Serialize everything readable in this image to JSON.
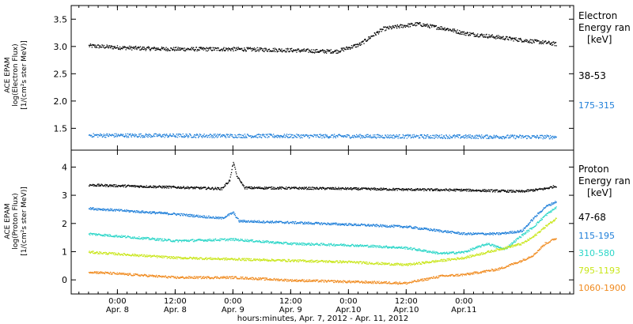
{
  "chart_data": [
    {
      "type": "scatter",
      "panel": "electron",
      "ylabel_lines": [
        "ACE EPAM",
        "log(Electron Flux)",
        "[1/(cm²s ster MeV)]"
      ],
      "ylim": [
        1.1,
        3.75
      ],
      "yticks": [
        "1.5",
        "2.0",
        "2.5",
        "3.0",
        "3.5"
      ],
      "ytick_values": [
        1.5,
        2.0,
        2.5,
        3.0,
        3.5
      ],
      "legend_title": [
        "Electron",
        "Energy ran",
        "[keV]"
      ],
      "series": [
        {
          "name": "38-53",
          "color": "#000000",
          "points": [
            [
              -0.25,
              3.02
            ],
            [
              0.0,
              2.99
            ],
            [
              0.25,
              2.97
            ],
            [
              0.5,
              2.96
            ],
            [
              0.75,
              2.96
            ],
            [
              1.0,
              2.96
            ],
            [
              1.25,
              2.95
            ],
            [
              1.5,
              2.94
            ],
            [
              1.75,
              2.92
            ],
            [
              1.9,
              2.92
            ],
            [
              2.1,
              3.05
            ],
            [
              2.2,
              3.2
            ],
            [
              2.3,
              3.33
            ],
            [
              2.45,
              3.38
            ],
            [
              2.6,
              3.42
            ],
            [
              2.7,
              3.38
            ],
            [
              2.85,
              3.33
            ],
            [
              3.0,
              3.25
            ],
            [
              3.2,
              3.2
            ],
            [
              3.4,
              3.15
            ],
            [
              3.6,
              3.1
            ],
            [
              3.7,
              3.08
            ],
            [
              3.8,
              3.05
            ]
          ]
        },
        {
          "name": "175-315",
          "color": "#1f7fd9",
          "points": [
            [
              -0.25,
              1.38
            ],
            [
              3.8,
              1.35
            ]
          ]
        }
      ]
    },
    {
      "type": "scatter",
      "panel": "proton",
      "ylabel_lines": [
        "ACE EPAM",
        "log(Proton Flux)",
        "[1/(cm²s ster MeV)]"
      ],
      "ylim": [
        -0.5,
        4.6
      ],
      "yticks": [
        "0",
        "1",
        "2",
        "3",
        "4"
      ],
      "ytick_values": [
        0,
        1,
        2,
        3,
        4
      ],
      "legend_title": [
        "Proton",
        "Energy ran",
        "[keV]"
      ],
      "series": [
        {
          "name": "47-68",
          "color": "#000000",
          "points": [
            [
              -0.25,
              3.38
            ],
            [
              0.5,
              3.3
            ],
            [
              0.9,
              3.25
            ],
            [
              0.97,
              3.55
            ],
            [
              1.0,
              4.2
            ],
            [
              1.03,
              3.7
            ],
            [
              1.1,
              3.28
            ],
            [
              1.5,
              3.27
            ],
            [
              2.0,
              3.25
            ],
            [
              2.5,
              3.22
            ],
            [
              3.0,
              3.2
            ],
            [
              3.5,
              3.15
            ],
            [
              3.7,
              3.25
            ],
            [
              3.8,
              3.35
            ]
          ]
        },
        {
          "name": "115-195",
          "color": "#1f7fd9",
          "points": [
            [
              -0.25,
              2.55
            ],
            [
              0.5,
              2.35
            ],
            [
              0.9,
              2.2
            ],
            [
              1.0,
              2.4
            ],
            [
              1.05,
              2.1
            ],
            [
              1.5,
              2.05
            ],
            [
              2.0,
              1.98
            ],
            [
              2.5,
              1.9
            ],
            [
              2.8,
              1.75
            ],
            [
              3.0,
              1.65
            ],
            [
              3.3,
              1.65
            ],
            [
              3.5,
              1.75
            ],
            [
              3.6,
              2.2
            ],
            [
              3.7,
              2.6
            ],
            [
              3.8,
              2.8
            ]
          ]
        },
        {
          "name": "310-580",
          "color": "#2bd6c8",
          "points": [
            [
              -0.25,
              1.65
            ],
            [
              0.5,
              1.4
            ],
            [
              1.0,
              1.45
            ],
            [
              1.5,
              1.3
            ],
            [
              2.0,
              1.25
            ],
            [
              2.5,
              1.15
            ],
            [
              2.8,
              0.95
            ],
            [
              3.0,
              1.0
            ],
            [
              3.2,
              1.3
            ],
            [
              3.35,
              1.1
            ],
            [
              3.5,
              1.6
            ],
            [
              3.6,
              1.9
            ],
            [
              3.7,
              2.3
            ],
            [
              3.8,
              2.6
            ]
          ]
        },
        {
          "name": "795-1193",
          "color": "#c9e619",
          "points": [
            [
              -0.25,
              1.0
            ],
            [
              0.5,
              0.8
            ],
            [
              1.0,
              0.75
            ],
            [
              1.5,
              0.7
            ],
            [
              2.0,
              0.65
            ],
            [
              2.5,
              0.55
            ],
            [
              2.8,
              0.7
            ],
            [
              3.0,
              0.8
            ],
            [
              3.3,
              1.1
            ],
            [
              3.5,
              1.3
            ],
            [
              3.6,
              1.55
            ],
            [
              3.7,
              1.9
            ],
            [
              3.8,
              2.2
            ]
          ]
        },
        {
          "name": "1060-1900",
          "color": "#f08a1e",
          "points": [
            [
              -0.25,
              0.3
            ],
            [
              0.5,
              0.1
            ],
            [
              1.0,
              0.1
            ],
            [
              1.5,
              0.0
            ],
            [
              2.0,
              -0.05
            ],
            [
              2.5,
              -0.1
            ],
            [
              2.8,
              0.15
            ],
            [
              3.0,
              0.2
            ],
            [
              3.3,
              0.4
            ],
            [
              3.5,
              0.7
            ],
            [
              3.6,
              0.9
            ],
            [
              3.7,
              1.3
            ],
            [
              3.8,
              1.5
            ]
          ]
        }
      ]
    }
  ],
  "xaxis": {
    "ticks_top": [
      "0:00",
      "12:00",
      "0:00",
      "12:00",
      "0:00",
      "12:00",
      "0:00"
    ],
    "ticks_bottom": [
      "Apr. 8",
      "Apr. 8",
      "Apr. 9",
      "Apr. 9",
      "Apr.10",
      "Apr.10",
      "Apr.11"
    ],
    "tick_values": [
      0,
      0.5,
      1,
      1.5,
      2,
      2.5,
      3
    ],
    "xlabel": "hours:minutes, Apr. 7, 2012 - Apr. 11, 2012"
  }
}
